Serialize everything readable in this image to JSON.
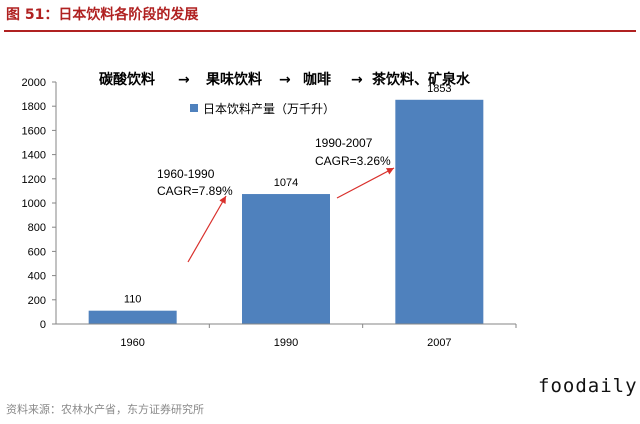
{
  "figure_title": "图 51：日本饮料各阶段的发展",
  "flow_steps": [
    "碳酸饮料",
    "果味饮料",
    "咖啡",
    "茶饮料、矿泉水"
  ],
  "flow_arrow": "→",
  "annotations": [
    {
      "line1": "1960-1990",
      "line2": "CAGR=7.89%"
    },
    {
      "line1": "1990-2007",
      "line2": "CAGR=3.26%"
    }
  ],
  "source": "资料来源：农林水产省，东方证券研究所",
  "brand": "foodaily",
  "colors": {
    "bar": "#4f81bd",
    "title": "#b02121",
    "arrow": "#d9302c",
    "axis": "#868686"
  },
  "chart_data": {
    "type": "bar",
    "categories": [
      "1960",
      "1990",
      "2007"
    ],
    "series": [
      {
        "name": "日本饮料产量（万千升）",
        "values": [
          110,
          1074,
          1853
        ]
      }
    ],
    "data_labels": [
      "110",
      "1074",
      "1853"
    ],
    "ylim": [
      0,
      2000
    ],
    "yticks": [
      0,
      200,
      400,
      600,
      800,
      1000,
      1200,
      1400,
      1600,
      1800,
      2000
    ],
    "grid": false,
    "legend_position": "top-left"
  }
}
